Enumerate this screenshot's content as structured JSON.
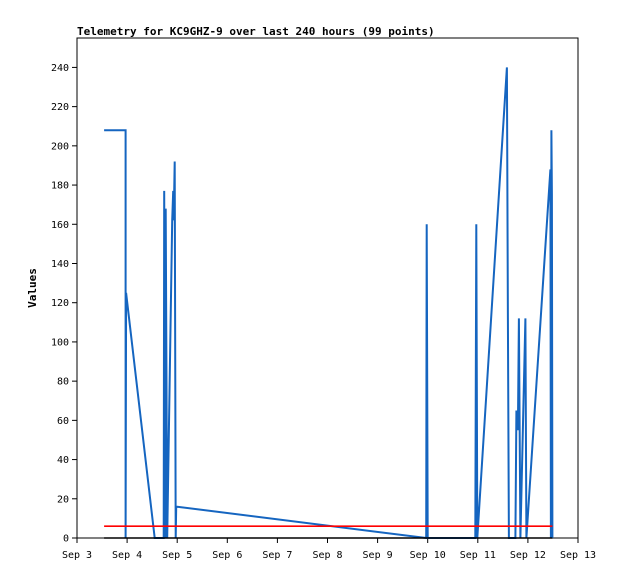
{
  "chart_data": {
    "type": "line",
    "title": "Telemetry for KC9GHZ-9 over last 240 hours (99 points)",
    "xlabel": "",
    "ylabel": "Values",
    "xlim": [
      "Sep 3",
      "Sep 13"
    ],
    "ylim": [
      0,
      255
    ],
    "x_ticks": [
      {
        "day": 3,
        "label": "Sep 3"
      },
      {
        "day": 4,
        "label": "Sep 4"
      },
      {
        "day": 5,
        "label": "Sep 5"
      },
      {
        "day": 6,
        "label": "Sep 6"
      },
      {
        "day": 7,
        "label": "Sep 7"
      },
      {
        "day": 8,
        "label": "Sep 8"
      },
      {
        "day": 9,
        "label": "Sep 9"
      },
      {
        "day": 10,
        "label": "Sep 10"
      },
      {
        "day": 11,
        "label": "Sep 11"
      },
      {
        "day": 12,
        "label": "Sep 12"
      },
      {
        "day": 13,
        "label": "Sep 13"
      }
    ],
    "y_ticks": [
      0,
      20,
      40,
      60,
      80,
      100,
      120,
      140,
      160,
      180,
      200,
      220,
      240
    ],
    "grid": false,
    "legend": "none",
    "series": [
      {
        "color": "#1565c0",
        "points": [
          [
            3.54,
            208
          ],
          [
            3.97,
            208
          ],
          [
            3.97,
            0
          ],
          [
            3.98,
            125
          ],
          [
            4.55,
            0
          ],
          [
            4.73,
            0
          ],
          [
            4.74,
            177
          ],
          [
            4.76,
            0
          ],
          [
            4.77,
            168
          ],
          [
            4.8,
            0
          ],
          [
            4.9,
            162
          ],
          [
            4.92,
            177
          ],
          [
            4.93,
            162
          ],
          [
            4.95,
            192
          ],
          [
            4.97,
            0
          ],
          [
            4.98,
            16
          ],
          [
            9.97,
            0
          ],
          [
            9.98,
            160
          ],
          [
            10.0,
            0
          ],
          [
            10.95,
            0
          ],
          [
            10.97,
            160
          ],
          [
            10.99,
            0
          ],
          [
            11.58,
            240
          ],
          [
            11.6,
            112
          ],
          [
            11.62,
            0
          ],
          [
            11.75,
            0
          ],
          [
            11.77,
            65
          ],
          [
            11.8,
            55
          ],
          [
            11.82,
            112
          ],
          [
            11.85,
            0
          ],
          [
            11.95,
            112
          ],
          [
            11.97,
            0
          ],
          [
            12.45,
            188
          ],
          [
            12.46,
            0
          ],
          [
            12.47,
            208
          ],
          [
            12.48,
            175
          ],
          [
            12.49,
            0
          ]
        ]
      },
      {
        "color": "#ff0000",
        "points": [
          [
            3.54,
            6
          ],
          [
            12.49,
            6
          ]
        ]
      },
      {
        "color": "#000000",
        "points": [
          [
            3.54,
            0
          ],
          [
            12.49,
            0
          ]
        ]
      }
    ]
  }
}
